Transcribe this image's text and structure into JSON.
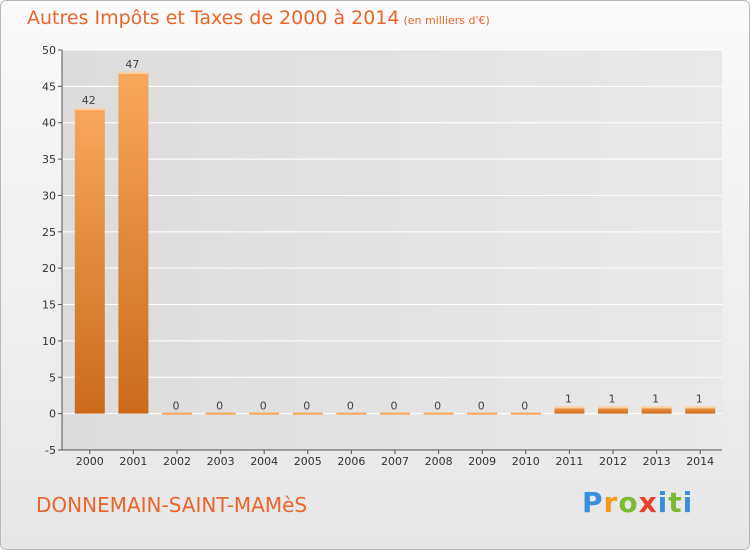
{
  "title": "Autres Impôts et Taxes de 2000 à 2014",
  "subtitle": "(en milliers d'€)",
  "commune": "DONNEMAIN-SAINT-MAMèS",
  "logo": {
    "letters": [
      "P",
      "r",
      "o",
      "x",
      "i",
      "t",
      "i"
    ],
    "colors": [
      "#3a8fd8",
      "#f39a1e",
      "#7cbb2f",
      "#e8402a",
      "#3a8fd8",
      "#7cbb2f",
      "#3a8fd8"
    ]
  },
  "colors": {
    "accent": "#e8662a",
    "bar_light": "#f7a75a",
    "bar_dark": "#cc6a1a",
    "grid": "#ffffff"
  },
  "chart_data": {
    "type": "bar",
    "categories": [
      "2000",
      "2001",
      "2002",
      "2003",
      "2004",
      "2005",
      "2006",
      "2007",
      "2008",
      "2009",
      "2010",
      "2011",
      "2012",
      "2013",
      "2014"
    ],
    "values": [
      42,
      47,
      0,
      0,
      0,
      0,
      0,
      0,
      0,
      0,
      0,
      1,
      1,
      1,
      1
    ],
    "data_labels": [
      "42",
      "47",
      "0",
      "0",
      "0",
      "0",
      "0",
      "0",
      "0",
      "0",
      "0",
      "1",
      "1",
      "1",
      "1"
    ],
    "yticks": [
      "-5",
      "0",
      "5",
      "10",
      "15",
      "20",
      "25",
      "30",
      "35",
      "40",
      "45",
      "50"
    ],
    "ylim": [
      -5,
      50
    ],
    "grid": true
  }
}
